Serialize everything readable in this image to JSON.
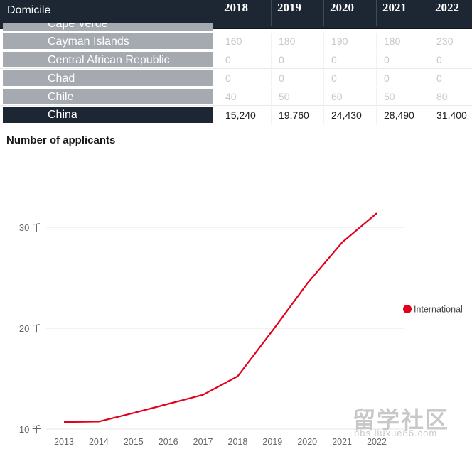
{
  "table": {
    "header": {
      "domicile": "Domicile",
      "years": [
        "2018",
        "2019",
        "2020",
        "2021",
        "2022"
      ]
    },
    "partial_row": {
      "name": "Cape Verde"
    },
    "rows": [
      {
        "name": "Cayman Islands",
        "values": [
          "160",
          "180",
          "190",
          "180",
          "230"
        ]
      },
      {
        "name": "Central African Republic",
        "values": [
          "0",
          "0",
          "0",
          "0",
          "0"
        ]
      },
      {
        "name": "Chad",
        "values": [
          "0",
          "0",
          "0",
          "0",
          "0"
        ]
      },
      {
        "name": "Chile",
        "values": [
          "40",
          "50",
          "60",
          "50",
          "80"
        ]
      }
    ],
    "highlight_row": {
      "name": "China",
      "values": [
        "15,240",
        "19,760",
        "24,430",
        "28,490",
        "31,400"
      ]
    }
  },
  "colors": {
    "line": "#e2001a",
    "header_bg": "#1c2733",
    "row_name_bg": "#a4aab0"
  },
  "watermark": {
    "main": "留学社区",
    "sub": "bbs.liuxue86.com"
  },
  "chart_data": {
    "type": "line",
    "title": "Number of applicants",
    "x": [
      "2013",
      "2014",
      "2015",
      "2016",
      "2017",
      "2018",
      "2019",
      "2020",
      "2021",
      "2022"
    ],
    "series": [
      {
        "name": "International",
        "values": [
          10700,
          10750,
          11600,
          12500,
          13400,
          15240,
          19760,
          24430,
          28490,
          31400
        ]
      }
    ],
    "yticks": [
      {
        "value": 10000,
        "label": "10 千"
      },
      {
        "value": 20000,
        "label": "20 千"
      },
      {
        "value": 30000,
        "label": "30 千"
      }
    ],
    "ylim": [
      10000,
      31400
    ],
    "grid": true,
    "legend": "right"
  }
}
